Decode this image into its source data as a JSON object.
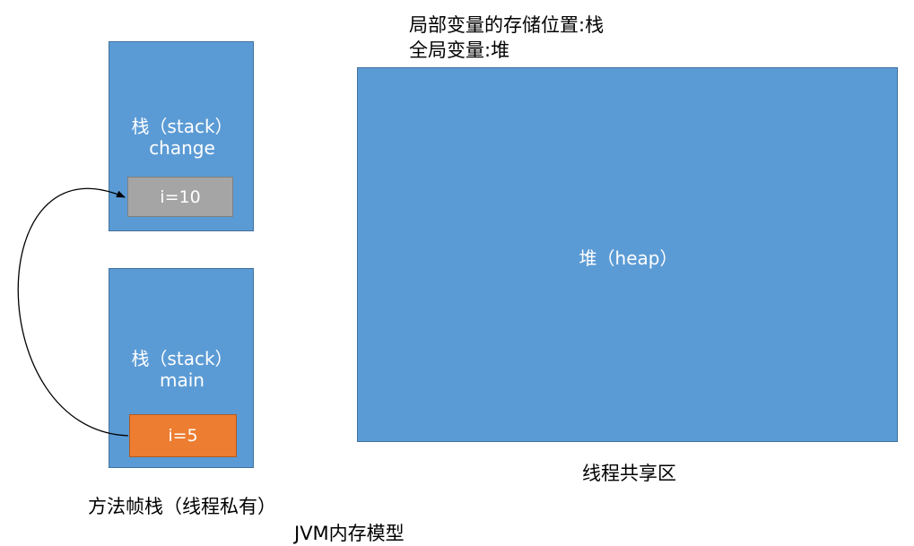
{
  "notes": {
    "local_var": "局部变量的存储位置:栈",
    "global_var": "全局变量:堆"
  },
  "stack_change": {
    "title": "栈（stack）",
    "subtitle": "change",
    "cell": "i=10",
    "cell_color": "#a5a5a5"
  },
  "stack_main": {
    "title": "栈（stack）",
    "subtitle": "main",
    "cell": "i=5",
    "cell_color": "#ed7d31"
  },
  "heap": {
    "title": "堆（heap）",
    "caption": "线程共享区"
  },
  "frames_caption": "方法帧栈（线程私有）",
  "model_caption": "JVM内存模型",
  "colors": {
    "block": "#5b9bd5",
    "arrow": "#000000"
  }
}
